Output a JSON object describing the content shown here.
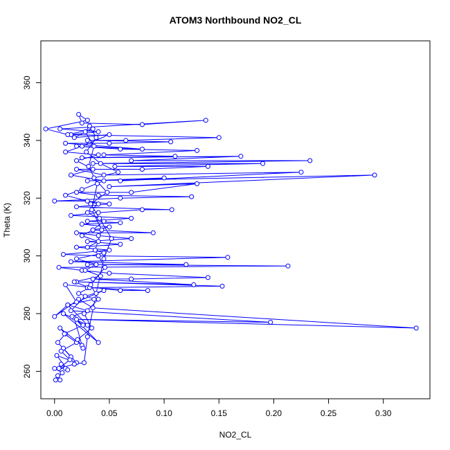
{
  "chart_data": {
    "type": "line",
    "title": "ATOM3 Northbound NO2_CL",
    "xlabel": "NO2_CL",
    "ylabel": "Theta (K)",
    "xlim": [
      -0.0125,
      0.3425
    ],
    "ylim": [
      250.5,
      374.5
    ],
    "xticks": [
      "0.00",
      "0.05",
      "0.10",
      "0.15",
      "0.20",
      "0.25",
      "0.30"
    ],
    "xtick_values": [
      0,
      0.05,
      0.1,
      0.15,
      0.2,
      0.25,
      0.3
    ],
    "yticks": [
      "260",
      "280",
      "300",
      "320",
      "340",
      "360"
    ],
    "ytick_values": [
      260,
      280,
      300,
      320,
      340,
      360
    ],
    "grid": false,
    "series": [
      {
        "color": "#0000ff",
        "marker": "open-circle",
        "connected": true,
        "points": [
          [
            0.005,
            257
          ],
          [
            0.003,
            258.5
          ],
          [
            0.001,
            257
          ],
          [
            0.007,
            259.5
          ],
          [
            0.0,
            261
          ],
          [
            0.01,
            261
          ],
          [
            0.006,
            262.5
          ],
          [
            0.012,
            260.5
          ],
          [
            0.002,
            265.5
          ],
          [
            0.02,
            263
          ],
          [
            0.008,
            268
          ],
          [
            0.015,
            265
          ],
          [
            0.003,
            270
          ],
          [
            0.01,
            273
          ],
          [
            0.005,
            275
          ],
          [
            0.025,
            269
          ],
          [
            0.018,
            278.5
          ],
          [
            0.04,
            270
          ],
          [
            0.008,
            280
          ],
          [
            0.03,
            276
          ],
          [
            0.012,
            283
          ],
          [
            0.0,
            279
          ],
          [
            0.022,
            285
          ],
          [
            0.035,
            282
          ],
          [
            0.33,
            275
          ],
          [
            0.02,
            278
          ],
          [
            0.197,
            277
          ],
          [
            0.015,
            281
          ],
          [
            0.028,
            286
          ],
          [
            0.045,
            288
          ],
          [
            0.02,
            284
          ],
          [
            0.01,
            290
          ],
          [
            0.06,
            288
          ],
          [
            0.085,
            288
          ],
          [
            0.03,
            289
          ],
          [
            0.153,
            289.5
          ],
          [
            0.02,
            291
          ],
          [
            0.127,
            290
          ],
          [
            0.035,
            292
          ],
          [
            0.07,
            292
          ],
          [
            0.14,
            292.5
          ],
          [
            0.05,
            294
          ],
          [
            0.025,
            295
          ],
          [
            0.004,
            296
          ],
          [
            0.213,
            296.5
          ],
          [
            0.03,
            297
          ],
          [
            0.12,
            297
          ],
          [
            0.015,
            298
          ],
          [
            0.158,
            299.5
          ],
          [
            0.04,
            300
          ],
          [
            0.008,
            300.5
          ],
          [
            0.05,
            302
          ],
          [
            0.02,
            303
          ],
          [
            0.06,
            304
          ],
          [
            0.03,
            305
          ],
          [
            0.07,
            306
          ],
          [
            0.04,
            307
          ],
          [
            0.02,
            308
          ],
          [
            0.09,
            308
          ],
          [
            0.035,
            309
          ],
          [
            0.05,
            310
          ],
          [
            0.025,
            311
          ],
          [
            0.06,
            311.5
          ],
          [
            0.03,
            312
          ],
          [
            0.07,
            313
          ],
          [
            0.015,
            314
          ],
          [
            0.04,
            315
          ],
          [
            0.08,
            316
          ],
          [
            0.107,
            316
          ],
          [
            0.02,
            317
          ],
          [
            0.05,
            318
          ],
          [
            0.03,
            319
          ],
          [
            0.0,
            319
          ],
          [
            0.06,
            320
          ],
          [
            0.125,
            320.5
          ],
          [
            0.04,
            321
          ],
          [
            0.02,
            322
          ],
          [
            0.07,
            322
          ],
          [
            0.13,
            325
          ],
          [
            0.05,
            324
          ],
          [
            0.292,
            328
          ],
          [
            0.03,
            326
          ],
          [
            0.1,
            327
          ],
          [
            0.06,
            326
          ],
          [
            0.225,
            329
          ],
          [
            0.045,
            328
          ],
          [
            0.02,
            330
          ],
          [
            0.08,
            330
          ],
          [
            0.14,
            331
          ],
          [
            0.055,
            331
          ],
          [
            0.19,
            332
          ],
          [
            0.035,
            332
          ],
          [
            0.233,
            333
          ],
          [
            0.07,
            333
          ],
          [
            0.17,
            334.5
          ],
          [
            0.025,
            334
          ],
          [
            0.11,
            334.5
          ],
          [
            0.045,
            335
          ],
          [
            0.13,
            336.5
          ],
          [
            0.06,
            337
          ],
          [
            0.02,
            338
          ],
          [
            0.08,
            337
          ],
          [
            0.01,
            339
          ],
          [
            0.05,
            339
          ],
          [
            0.106,
            339.5
          ],
          [
            0.03,
            340
          ],
          [
            0.065,
            340
          ],
          [
            0.15,
            341
          ],
          [
            0.015,
            342
          ],
          [
            0.04,
            343
          ],
          [
            0.005,
            344
          ],
          [
            0.138,
            347
          ],
          [
            0.08,
            345.5
          ],
          [
            0.025,
            346
          ],
          [
            0.022,
            349
          ],
          [
            0.03,
            347
          ],
          [
            -0.008,
            344
          ],
          [
            0.012,
            342
          ],
          [
            0.035,
            344
          ],
          [
            0.018,
            341
          ],
          [
            0.05,
            342
          ],
          [
            0.025,
            338
          ],
          [
            0.01,
            336
          ],
          [
            0.04,
            335
          ],
          [
            0.02,
            333
          ],
          [
            0.035,
            330
          ],
          [
            0.015,
            328
          ],
          [
            0.045,
            326
          ],
          [
            0.025,
            323
          ],
          [
            0.01,
            321
          ],
          [
            0.04,
            318
          ],
          [
            0.03,
            315
          ],
          [
            0.045,
            312
          ],
          [
            0.035,
            309
          ],
          [
            0.025,
            307
          ],
          [
            0.04,
            305
          ],
          [
            0.03,
            303
          ],
          [
            0.045,
            301
          ],
          [
            0.02,
            299
          ],
          [
            0.038,
            297
          ],
          [
            0.028,
            295
          ],
          [
            0.042,
            293
          ],
          [
            0.018,
            291
          ],
          [
            0.032,
            289
          ],
          [
            0.022,
            287
          ],
          [
            0.036,
            285
          ],
          [
            0.012,
            283
          ],
          [
            0.03,
            281
          ],
          [
            0.016,
            279
          ],
          [
            0.026,
            276
          ],
          [
            0.009,
            273
          ],
          [
            0.02,
            270
          ],
          [
            0.006,
            267
          ],
          [
            0.014,
            264
          ],
          [
            0.004,
            261
          ],
          [
            0.018,
            262.5
          ],
          [
            0.027,
            263
          ],
          [
            0.03,
            272
          ],
          [
            0.038,
            287
          ],
          [
            0.045,
            299
          ],
          [
            0.052,
            306
          ],
          [
            0.041,
            313
          ],
          [
            0.033,
            318
          ],
          [
            0.048,
            322
          ],
          [
            0.036,
            327
          ],
          [
            0.058,
            329
          ],
          [
            0.042,
            332
          ],
          [
            0.029,
            336
          ],
          [
            0.038,
            341
          ],
          [
            0.032,
            345
          ],
          [
            0.028,
            343
          ],
          [
            0.036,
            338
          ],
          [
            0.031,
            331
          ],
          [
            0.039,
            325
          ],
          [
            0.034,
            316
          ],
          [
            0.043,
            309
          ],
          [
            0.037,
            302
          ],
          [
            0.046,
            296
          ],
          [
            0.033,
            290
          ],
          [
            0.04,
            285
          ],
          [
            0.027,
            280
          ],
          [
            0.034,
            275
          ],
          [
            0.021,
            271
          ],
          [
            0.026,
            268
          ]
        ]
      }
    ]
  }
}
